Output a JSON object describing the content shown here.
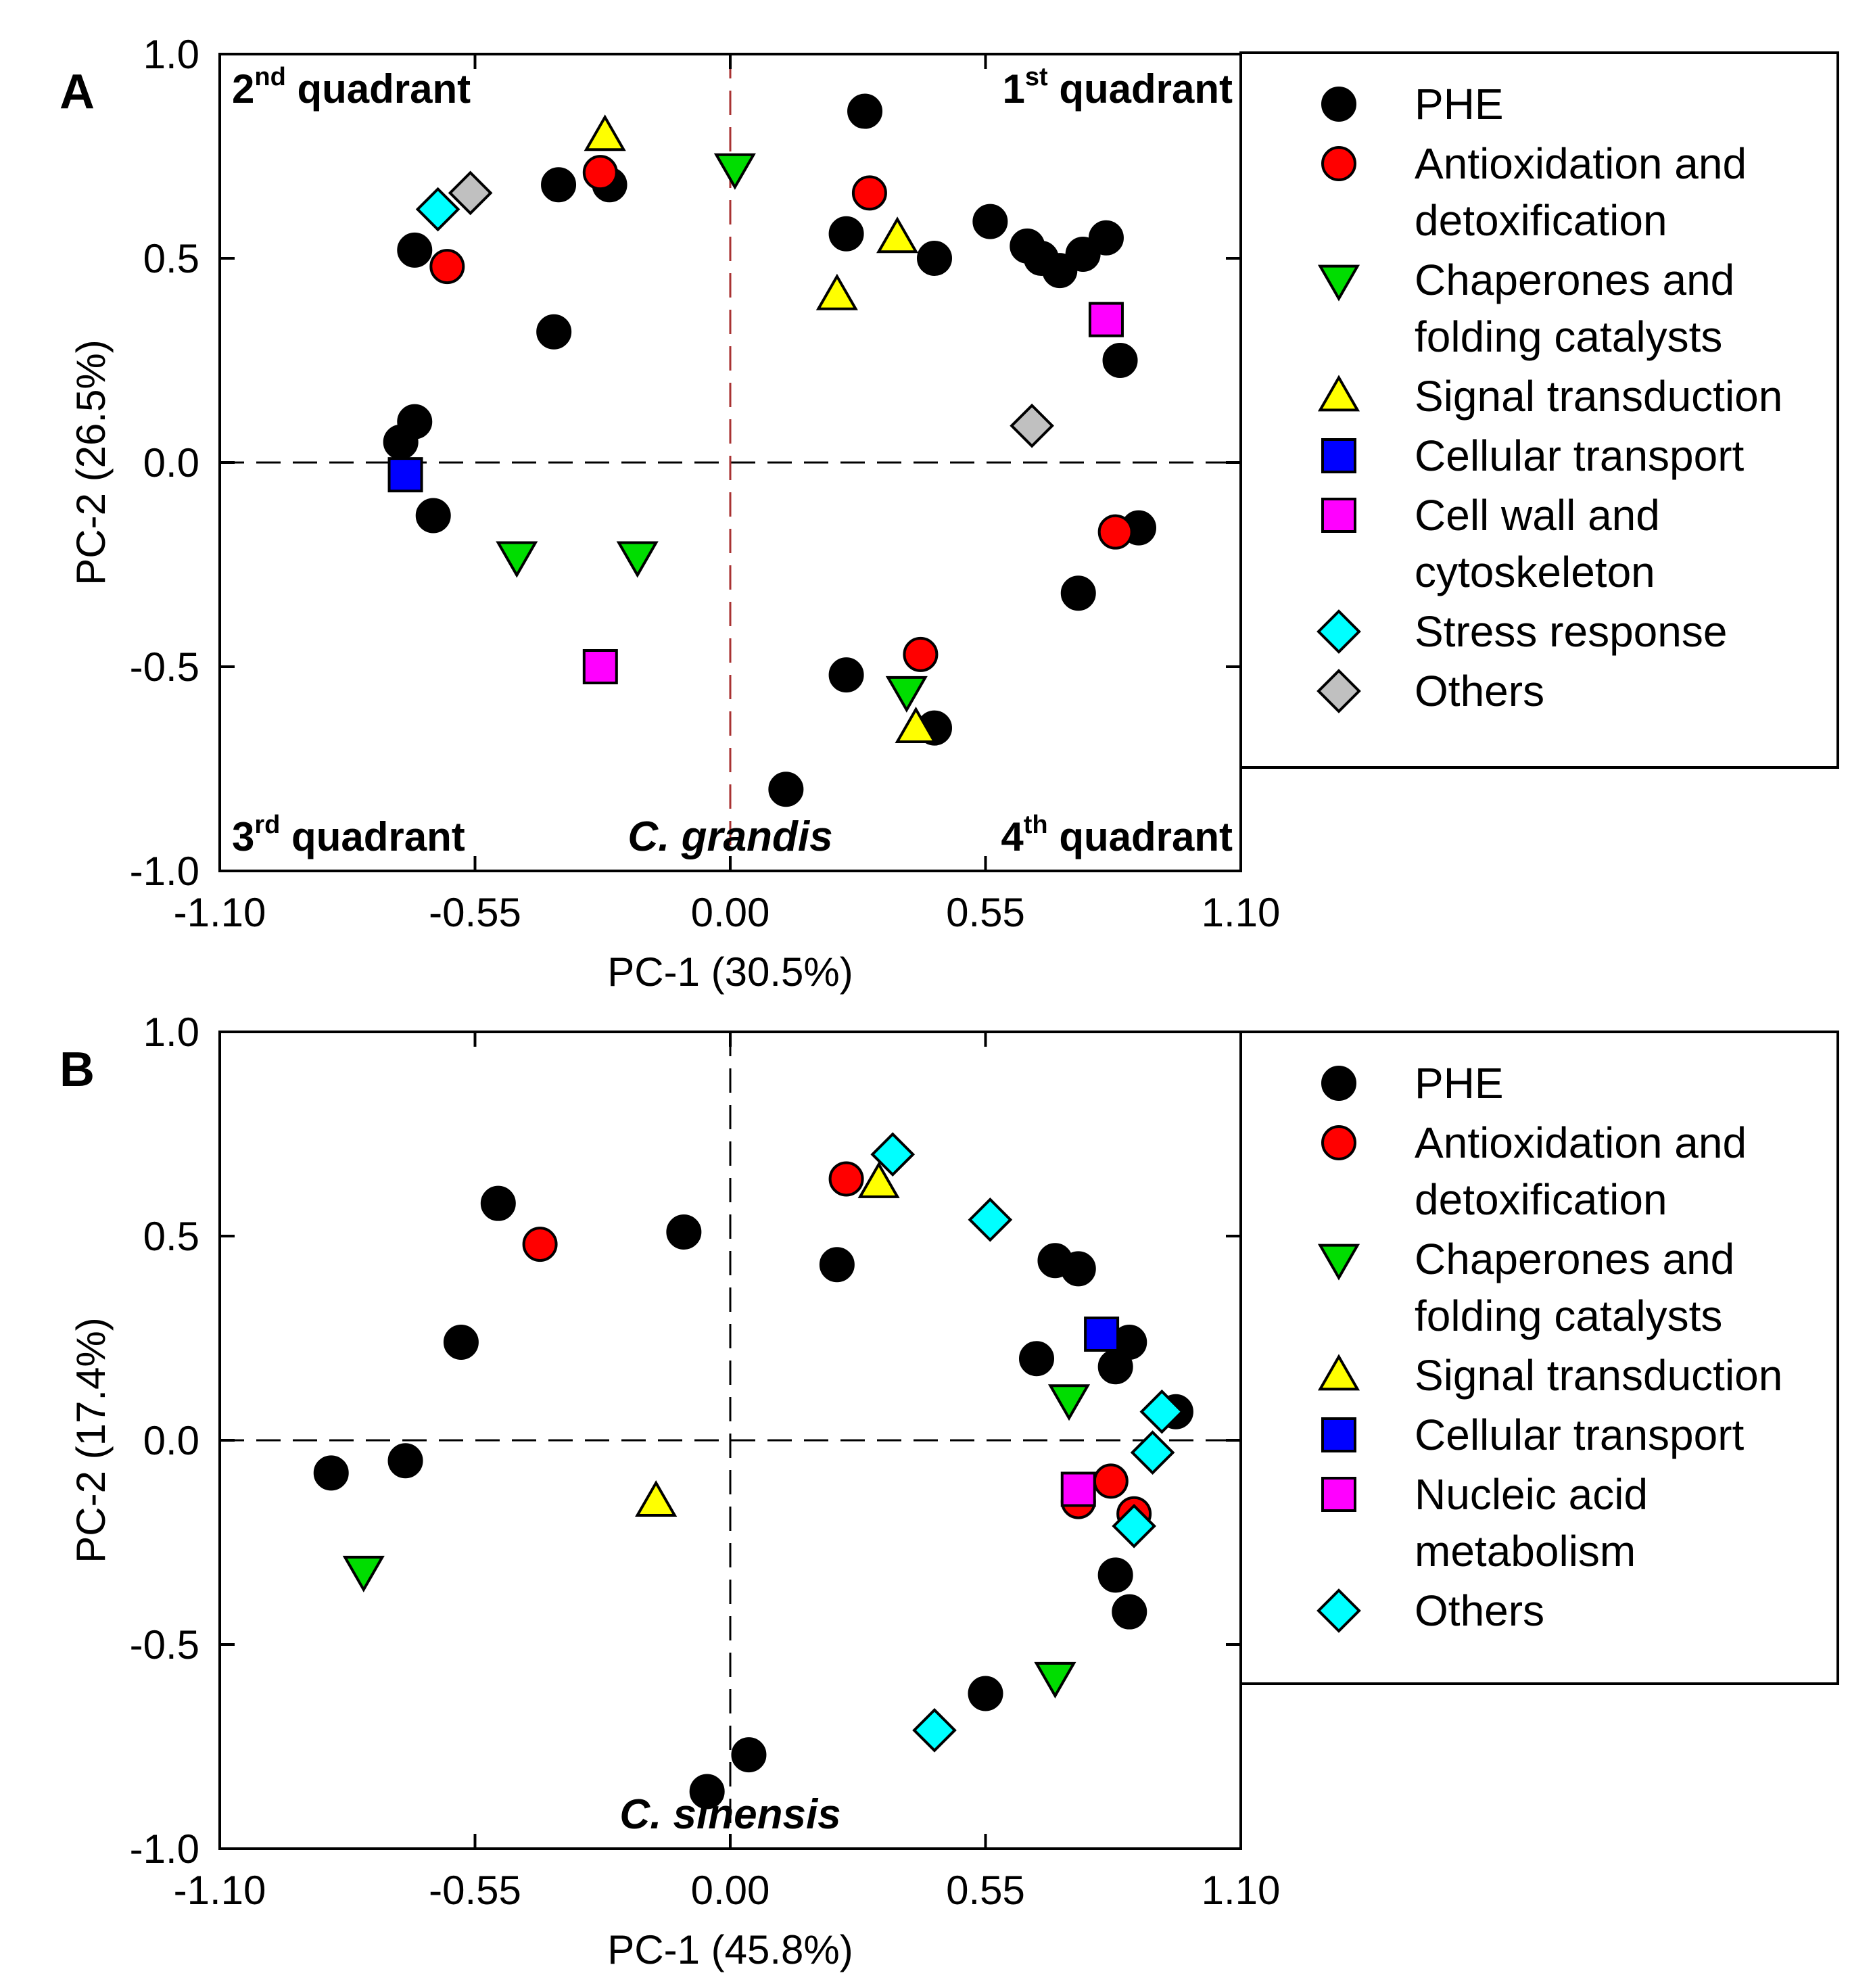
{
  "chart_data": [
    {
      "type": "scatter",
      "panel": "A",
      "xlabel": "PC-1 (30.5%)",
      "ylabel": "PC-2 (26.5%)",
      "xlim": [
        -1.1,
        1.1
      ],
      "ylim": [
        -1.0,
        1.0
      ],
      "xticks": [
        "-1.10",
        "-0.55",
        "0.00",
        "0.55",
        "1.10"
      ],
      "yticks": [
        "1.0",
        "0.5",
        "0.0",
        "-0.5",
        "-1.0"
      ],
      "species": "C. grandis",
      "quadrants": [
        {
          "num": "1",
          "sup": "st",
          "word": "quadrant"
        },
        {
          "num": "2",
          "sup": "nd",
          "word": "quadrant"
        },
        {
          "num": "3",
          "sup": "rd",
          "word": "quadrant"
        },
        {
          "num": "4",
          "sup": "th",
          "word": "quadrant"
        }
      ],
      "legend": [
        {
          "lines": [
            "PHE"
          ],
          "marker": "circle",
          "color": "#000000"
        },
        {
          "lines": [
            "Antioxidation and",
            "detoxification"
          ],
          "marker": "circle",
          "color": "#ff0000"
        },
        {
          "lines": [
            "Chaperones and",
            "folding catalysts"
          ],
          "marker": "triangle-down",
          "color": "#00dd00"
        },
        {
          "lines": [
            "Signal transduction"
          ],
          "marker": "triangle-up",
          "color": "#ffff00"
        },
        {
          "lines": [
            "Cellular transport"
          ],
          "marker": "square",
          "color": "#0000ff"
        },
        {
          "lines": [
            "Cell wall and",
            "cytoskeleton"
          ],
          "marker": "square",
          "color": "#ff00ff"
        },
        {
          "lines": [
            "Stress response"
          ],
          "marker": "diamond",
          "color": "#00ffff"
        },
        {
          "lines": [
            "Others"
          ],
          "marker": "diamond",
          "color": "#c0c0c0"
        }
      ],
      "series": [
        {
          "name": "PHE",
          "marker": "circle",
          "color": "#000000",
          "points": [
            [
              0.29,
              0.86
            ],
            [
              -0.37,
              0.68
            ],
            [
              -0.26,
              0.68
            ],
            [
              -0.68,
              0.52
            ],
            [
              -0.38,
              0.32
            ],
            [
              -0.71,
              0.05
            ],
            [
              -0.68,
              0.1
            ],
            [
              -0.64,
              -0.13
            ],
            [
              0.25,
              0.56
            ],
            [
              0.44,
              0.5
            ],
            [
              0.56,
              0.59
            ],
            [
              0.64,
              0.53
            ],
            [
              0.67,
              0.5
            ],
            [
              0.71,
              0.47
            ],
            [
              0.76,
              0.51
            ],
            [
              0.81,
              0.55
            ],
            [
              0.84,
              0.25
            ],
            [
              0.88,
              -0.16
            ],
            [
              0.75,
              -0.32
            ],
            [
              0.25,
              -0.52
            ],
            [
              0.12,
              -0.8
            ],
            [
              0.44,
              -0.65
            ]
          ]
        },
        {
          "name": "Antioxidation and detoxification",
          "marker": "circle",
          "color": "#ff0000",
          "points": [
            [
              -0.28,
              0.71
            ],
            [
              -0.61,
              0.48
            ],
            [
              0.3,
              0.66
            ],
            [
              0.83,
              -0.17
            ],
            [
              0.41,
              -0.47
            ]
          ]
        },
        {
          "name": "Chaperones and folding catalysts",
          "marker": "triangle-down",
          "color": "#00dd00",
          "points": [
            [
              0.01,
              0.72
            ],
            [
              -0.46,
              -0.23
            ],
            [
              -0.2,
              -0.23
            ],
            [
              0.38,
              -0.56
            ]
          ]
        },
        {
          "name": "Signal transduction",
          "marker": "triangle-up",
          "color": "#ffff00",
          "points": [
            [
              -0.27,
              0.8
            ],
            [
              0.36,
              0.55
            ],
            [
              0.23,
              0.41
            ],
            [
              0.4,
              -0.65
            ]
          ]
        },
        {
          "name": "Cellular transport",
          "marker": "square",
          "color": "#0000ff",
          "points": [
            [
              -0.7,
              -0.03
            ]
          ]
        },
        {
          "name": "Cell wall and cytoskeleton",
          "marker": "square",
          "color": "#ff00ff",
          "points": [
            [
              0.81,
              0.35
            ],
            [
              -0.28,
              -0.5
            ]
          ]
        },
        {
          "name": "Stress response",
          "marker": "diamond",
          "color": "#00ffff",
          "points": [
            [
              -0.63,
              0.62
            ]
          ]
        },
        {
          "name": "Others",
          "marker": "diamond",
          "color": "#c0c0c0",
          "points": [
            [
              -0.56,
              0.66
            ],
            [
              0.65,
              0.09
            ]
          ]
        }
      ]
    },
    {
      "type": "scatter",
      "panel": "B",
      "xlabel": "PC-1 (45.8%)",
      "ylabel": "PC-2 (17.4%)",
      "xlim": [
        -1.1,
        1.1
      ],
      "ylim": [
        -1.0,
        1.0
      ],
      "xticks": [
        "-1.10",
        "-0.55",
        "0.00",
        "0.55",
        "1.10"
      ],
      "yticks": [
        "1.0",
        "0.5",
        "0.0",
        "-0.5",
        "-1.0"
      ],
      "species": "C. sinensis",
      "legend": [
        {
          "lines": [
            "PHE"
          ],
          "marker": "circle",
          "color": "#000000"
        },
        {
          "lines": [
            "Antioxidation and",
            "detoxification"
          ],
          "marker": "circle",
          "color": "#ff0000"
        },
        {
          "lines": [
            "Chaperones and",
            "folding catalysts"
          ],
          "marker": "triangle-down",
          "color": "#00dd00"
        },
        {
          "lines": [
            "Signal transduction"
          ],
          "marker": "triangle-up",
          "color": "#ffff00"
        },
        {
          "lines": [
            "Cellular transport"
          ],
          "marker": "square",
          "color": "#0000ff"
        },
        {
          "lines": [
            "Nucleic acid",
            "metabolism"
          ],
          "marker": "square",
          "color": "#ff00ff"
        },
        {
          "lines": [
            "Others"
          ],
          "marker": "diamond",
          "color": "#00ffff"
        }
      ],
      "series": [
        {
          "name": "PHE",
          "marker": "circle",
          "color": "#000000",
          "points": [
            [
              -0.5,
              0.58
            ],
            [
              -0.58,
              0.24
            ],
            [
              -0.86,
              -0.08
            ],
            [
              -0.7,
              -0.05
            ],
            [
              -0.1,
              0.51
            ],
            [
              0.23,
              0.43
            ],
            [
              0.7,
              0.44
            ],
            [
              0.75,
              0.42
            ],
            [
              0.66,
              0.2
            ],
            [
              0.86,
              0.24
            ],
            [
              0.83,
              0.18
            ],
            [
              0.96,
              0.07
            ],
            [
              0.83,
              -0.33
            ],
            [
              0.86,
              -0.42
            ],
            [
              0.55,
              -0.62
            ],
            [
              0.04,
              -0.77
            ],
            [
              -0.05,
              -0.86
            ]
          ]
        },
        {
          "name": "Antioxidation and detoxification",
          "marker": "circle",
          "color": "#ff0000",
          "points": [
            [
              0.25,
              0.64
            ],
            [
              -0.41,
              0.48
            ],
            [
              0.82,
              -0.1
            ],
            [
              0.75,
              -0.15
            ],
            [
              0.87,
              -0.18
            ]
          ]
        },
        {
          "name": "Chaperones and folding catalysts",
          "marker": "triangle-down",
          "color": "#00dd00",
          "points": [
            [
              0.73,
              0.1
            ],
            [
              -0.79,
              -0.32
            ],
            [
              0.7,
              -0.58
            ]
          ]
        },
        {
          "name": "Signal transduction",
          "marker": "triangle-up",
          "color": "#ffff00",
          "points": [
            [
              0.32,
              0.63
            ],
            [
              -0.16,
              -0.15
            ]
          ]
        },
        {
          "name": "Cellular transport",
          "marker": "square",
          "color": "#0000ff",
          "points": [
            [
              0.8,
              0.26
            ]
          ]
        },
        {
          "name": "Nucleic acid metabolism",
          "marker": "square",
          "color": "#ff00ff",
          "points": [
            [
              0.75,
              -0.12
            ]
          ]
        },
        {
          "name": "Others",
          "marker": "diamond",
          "color": "#00ffff",
          "points": [
            [
              0.35,
              0.7
            ],
            [
              0.56,
              0.54
            ],
            [
              0.93,
              0.07
            ],
            [
              0.91,
              -0.03
            ],
            [
              0.87,
              -0.21
            ],
            [
              0.44,
              -0.71
            ]
          ]
        }
      ]
    }
  ]
}
